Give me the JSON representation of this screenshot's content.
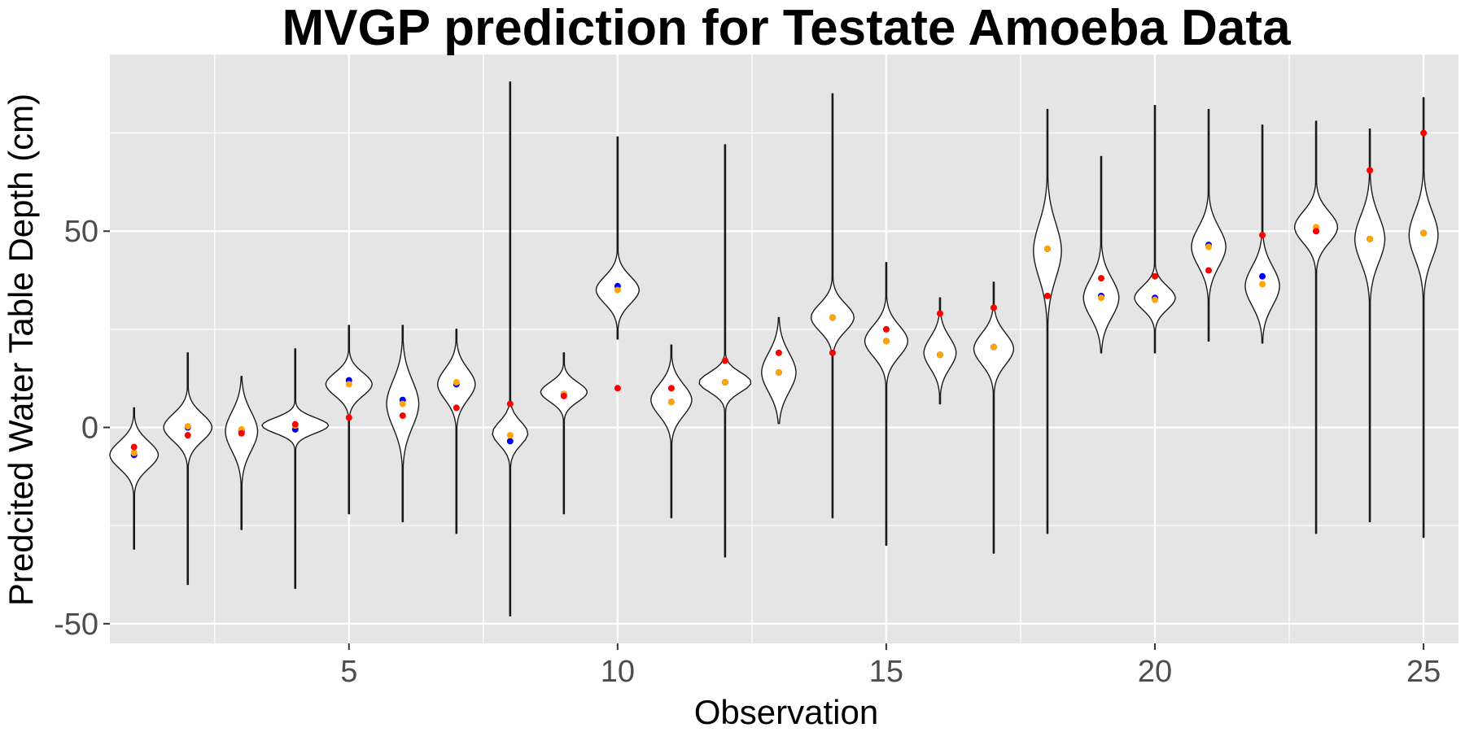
{
  "chart_data": {
    "type": "violin",
    "title": "MVGP prediction for Testate Amoeba Data",
    "xlabel": "Observation",
    "ylabel": "Predcited Water Table Depth (cm)",
    "xlim": [
      0.55,
      25.65
    ],
    "ylim": [
      -55,
      95
    ],
    "x_ticks": [
      5,
      10,
      15,
      20,
      25
    ],
    "y_ticks": [
      -50,
      0,
      50
    ],
    "grid": true,
    "legend": "none",
    "colors": {
      "panel_bg": "#e5e5e5",
      "grid": "#ffffff",
      "violin_fill": "#ffffff",
      "violin_line": "#1a1a1a",
      "observed": "#ff0000",
      "mean": "#0000ff",
      "median": "#ffa500"
    },
    "observations": [
      {
        "x": 1,
        "min": -31,
        "max": 5,
        "center": -7,
        "spread": 3.5,
        "halfwidth": 0.45,
        "observed": -5,
        "mean": -7,
        "median": -6.5
      },
      {
        "x": 2,
        "min": -40,
        "max": 19,
        "center": 0,
        "spread": 3.5,
        "halfwidth": 0.45,
        "observed": -2,
        "mean": 0,
        "median": 0.3
      },
      {
        "x": 3,
        "min": -26,
        "max": 13,
        "center": -1,
        "spread": 5,
        "halfwidth": 0.3,
        "observed": -1.5,
        "mean": -1,
        "median": -0.5
      },
      {
        "x": 4,
        "min": -41,
        "max": 20,
        "center": 0.5,
        "spread": 2,
        "halfwidth": 0.62,
        "observed": 0.8,
        "mean": -0.5,
        "median": 0.5
      },
      {
        "x": 5,
        "min": -22,
        "max": 26,
        "center": 11,
        "spread": 3,
        "halfwidth": 0.43,
        "observed": 2.5,
        "mean": 12,
        "median": 11
      },
      {
        "x": 6,
        "min": -24,
        "max": 26,
        "center": 6,
        "spread": 6,
        "halfwidth": 0.3,
        "observed": 3,
        "mean": 7,
        "median": 6
      },
      {
        "x": 7,
        "min": -27,
        "max": 25,
        "center": 11,
        "spread": 4,
        "halfwidth": 0.35,
        "observed": 5,
        "mean": 11,
        "median": 11.5
      },
      {
        "x": 8,
        "min": -48,
        "max": 88,
        "center": -1.5,
        "spread": 3,
        "halfwidth": 0.33,
        "observed": 6,
        "mean": -3.5,
        "median": -2
      },
      {
        "x": 9,
        "min": -22,
        "max": 19,
        "center": 9,
        "spread": 2.5,
        "halfwidth": 0.43,
        "observed": 8,
        "mean": 8.5,
        "median": 8.5
      },
      {
        "x": 10,
        "min": 22.5,
        "max": 74,
        "center": 35,
        "spread": 3.5,
        "halfwidth": 0.4,
        "observed": 10,
        "mean": 36,
        "median": 35
      },
      {
        "x": 11,
        "min": -23,
        "max": 21,
        "center": 7,
        "spread": 4,
        "halfwidth": 0.38,
        "observed": 10,
        "mean": 6.5,
        "median": 6.5
      },
      {
        "x": 12,
        "min": -33,
        "max": 72,
        "center": 11.5,
        "spread": 2.5,
        "halfwidth": 0.48,
        "observed": 17,
        "mean": 11.5,
        "median": 11.5
      },
      {
        "x": 13,
        "min": 1,
        "max": 28,
        "center": 14,
        "spread": 5,
        "halfwidth": 0.32,
        "observed": 19,
        "mean": 14,
        "median": 14
      },
      {
        "x": 14,
        "min": -23,
        "max": 85,
        "center": 28,
        "spread": 3.5,
        "halfwidth": 0.4,
        "observed": 19,
        "mean": 28,
        "median": 28
      },
      {
        "x": 15,
        "min": -30,
        "max": 42,
        "center": 22,
        "spread": 4,
        "halfwidth": 0.4,
        "observed": 25,
        "mean": 22,
        "median": 22
      },
      {
        "x": 16,
        "min": 6,
        "max": 33,
        "center": 19,
        "spread": 4,
        "halfwidth": 0.3,
        "observed": 29,
        "mean": 18.5,
        "median": 18.5
      },
      {
        "x": 17,
        "min": -32,
        "max": 37,
        "center": 20,
        "spread": 4,
        "halfwidth": 0.37,
        "observed": 30.5,
        "mean": 20.5,
        "median": 20.5
      },
      {
        "x": 18,
        "min": -27,
        "max": 81,
        "center": 45,
        "spread": 7,
        "halfwidth": 0.26,
        "observed": 33.5,
        "mean": 45.5,
        "median": 45.5
      },
      {
        "x": 19,
        "min": 19,
        "max": 69,
        "center": 33,
        "spread": 5,
        "halfwidth": 0.33,
        "observed": 38,
        "mean": 33.5,
        "median": 33
      },
      {
        "x": 20,
        "min": 19,
        "max": 82,
        "center": 33,
        "spread": 3,
        "halfwidth": 0.38,
        "observed": 38.5,
        "mean": 33,
        "median": 32.5
      },
      {
        "x": 21,
        "min": 22,
        "max": 81,
        "center": 46,
        "spread": 5,
        "halfwidth": 0.32,
        "observed": 40,
        "mean": 46.5,
        "median": 46
      },
      {
        "x": 22,
        "min": 21.5,
        "max": 77,
        "center": 36,
        "spread": 5,
        "halfwidth": 0.32,
        "observed": 49,
        "mean": 38.5,
        "median": 36.5
      },
      {
        "x": 23,
        "min": -27,
        "max": 78,
        "center": 51,
        "spread": 4,
        "halfwidth": 0.4,
        "observed": 50,
        "mean": 50,
        "median": 51
      },
      {
        "x": 24,
        "min": -24,
        "max": 76,
        "center": 48,
        "spread": 6,
        "halfwidth": 0.28,
        "observed": 65.5,
        "mean": 48,
        "median": 48
      },
      {
        "x": 25,
        "min": -28,
        "max": 84,
        "center": 49,
        "spread": 6,
        "halfwidth": 0.27,
        "observed": 75,
        "mean": 49.5,
        "median": 49.5
      }
    ]
  }
}
